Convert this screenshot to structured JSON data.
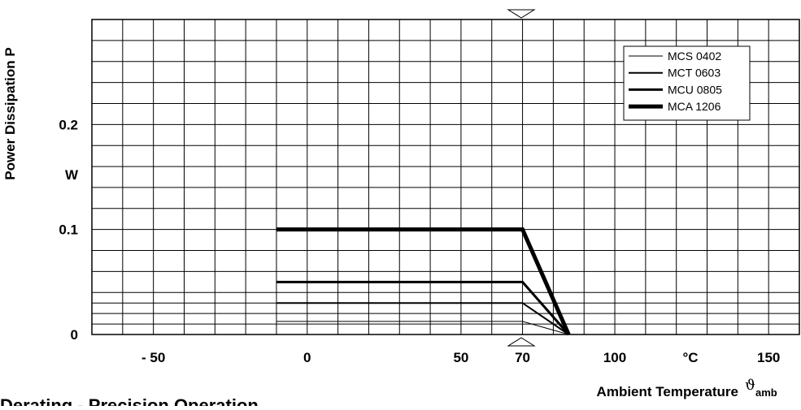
{
  "chart_data": {
    "type": "line",
    "title": "Derating - Precision Operation",
    "y_label": "Power Dissipation P",
    "y_unit": "W",
    "x_label": "Ambient Temperature",
    "x_symbol": "ϑ",
    "x_symbol_sub": "amb",
    "x_unit": "°C",
    "xlim": [
      -70,
      160
    ],
    "ylim": [
      0,
      0.3
    ],
    "xticks": [
      {
        "value": -50,
        "label": "- 50"
      },
      0,
      50,
      70,
      100,
      150
    ],
    "yticks": [
      0,
      0.1,
      0.2
    ],
    "xgrid": [
      -60,
      -50,
      -40,
      -30,
      -20,
      -10,
      0,
      10,
      20,
      30,
      40,
      50,
      60,
      70,
      80,
      90,
      100,
      110,
      120,
      130,
      140,
      150
    ],
    "ygrid": [
      0.01,
      0.02,
      0.03,
      0.04,
      0.06,
      0.08,
      0.1,
      0.12,
      0.14,
      0.16,
      0.18,
      0.2,
      0.22,
      0.24,
      0.26,
      0.28
    ],
    "grid": true,
    "legend": "upper right",
    "series": [
      {
        "name": "MCS 0402",
        "color": "#000000",
        "width": 1,
        "x": [
          -10,
          70,
          85
        ],
        "values": [
          0.0125,
          0.0125,
          0
        ]
      },
      {
        "name": "MCT 0603",
        "color": "#000000",
        "width": 2,
        "x": [
          -10,
          70,
          85
        ],
        "values": [
          0.03,
          0.03,
          0
        ]
      },
      {
        "name": "MCU 0805",
        "color": "#000000",
        "width": 3,
        "x": [
          -10,
          70,
          85
        ],
        "values": [
          0.05,
          0.05,
          0
        ]
      },
      {
        "name": "MCA 1206",
        "color": "#000000",
        "width": 5,
        "x": [
          -10,
          70,
          85
        ],
        "values": [
          0.1,
          0.1,
          0
        ]
      }
    ]
  }
}
